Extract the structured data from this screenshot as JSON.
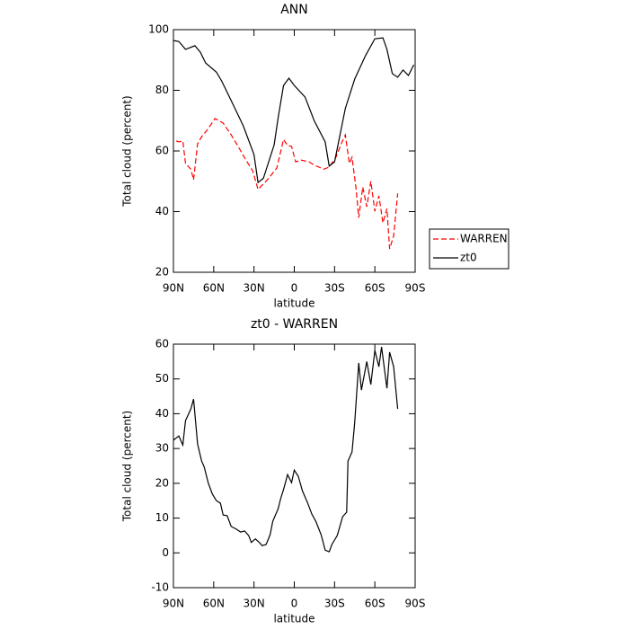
{
  "chart_data": [
    {
      "type": "line",
      "title": "ANN",
      "xlabel": "latitude",
      "ylabel": "Total cloud (percent)",
      "xlim": [
        90,
        -90
      ],
      "xticks": [
        {
          "value": 90,
          "label": "90N"
        },
        {
          "value": 60,
          "label": "60N"
        },
        {
          "value": 30,
          "label": "30N"
        },
        0,
        {
          "value": -30,
          "label": "30S"
        },
        {
          "value": -60,
          "label": "60S"
        },
        {
          "value": -90,
          "label": "90S"
        }
      ],
      "ylim": [
        20,
        100
      ],
      "yticks": [
        20,
        40,
        60,
        80,
        100
      ],
      "legend": "right",
      "series": [
        {
          "name": "WARREN",
          "color": "#ff0000",
          "style": "dashed",
          "x": [
            88,
            86,
            83,
            81,
            77,
            75,
            72,
            69,
            65,
            59,
            53,
            47,
            43,
            36,
            31,
            27,
            20,
            13,
            10,
            8,
            5,
            2,
            -1,
            -5,
            -11,
            -15,
            -22,
            -26,
            -31,
            -35,
            -38,
            -41,
            -43,
            -46,
            -48,
            -51,
            -54,
            -57,
            -60,
            -63,
            -66,
            -69,
            -71,
            -74,
            -77
          ],
          "values": [
            63.3,
            63,
            63.3,
            55.9,
            54,
            50.5,
            62.4,
            64.7,
            66.8,
            70.7,
            69.2,
            65.3,
            62.4,
            57,
            53.5,
            47.3,
            50.5,
            54.4,
            60,
            63.8,
            61.8,
            61.5,
            56.4,
            57,
            56.4,
            55.3,
            54,
            54.7,
            57.9,
            62.4,
            65.3,
            55.9,
            57.9,
            47.6,
            38,
            48.1,
            41.6,
            50,
            40.1,
            45.2,
            36.3,
            41,
            27.7,
            32,
            46
          ]
        },
        {
          "name": "zt0",
          "color": "#000000",
          "style": "solid",
          "x": [
            90,
            86,
            81,
            74,
            70,
            66,
            58,
            54,
            46,
            38,
            30,
            27,
            23,
            15,
            12,
            8,
            4,
            0,
            -8,
            -15,
            -23,
            -26,
            -30,
            -38,
            -45,
            -53,
            -60,
            -66,
            -69,
            -73,
            -77,
            -81,
            -85,
            -89
          ],
          "values": [
            96.4,
            96.1,
            93.5,
            94.7,
            92.6,
            89,
            86,
            83,
            75.7,
            68.3,
            58.8,
            49.6,
            51,
            62,
            71,
            81.6,
            84,
            81.6,
            77.8,
            69.8,
            63,
            55,
            56.4,
            74,
            83.7,
            91.4,
            97,
            97.3,
            93.5,
            85.5,
            84.3,
            86.7,
            84.9,
            88.4
          ]
        }
      ]
    },
    {
      "type": "line",
      "title": "zt0 - WARREN",
      "xlabel": "latitude",
      "ylabel": "Total cloud (percent)",
      "xlim": [
        90,
        -90
      ],
      "xticks": [
        {
          "value": 90,
          "label": "90N"
        },
        {
          "value": 60,
          "label": "60N"
        },
        {
          "value": 30,
          "label": "30N"
        },
        0,
        {
          "value": -30,
          "label": "30S"
        },
        {
          "value": -60,
          "label": "60S"
        },
        {
          "value": -90,
          "label": "90S"
        }
      ],
      "ylim": [
        -10,
        60
      ],
      "yticks": [
        -10,
        0,
        10,
        20,
        30,
        40,
        50,
        60
      ],
      "series": [
        {
          "color": "#000000",
          "style": "solid",
          "x": [
            90,
            86,
            83,
            81,
            77,
            75,
            72,
            69,
            67,
            64,
            61,
            58,
            55,
            53,
            50,
            47,
            43,
            40,
            37,
            34,
            32,
            29,
            26,
            24,
            21,
            18,
            16,
            12,
            10,
            8,
            5,
            2,
            0,
            -3,
            -6,
            -10,
            -13,
            -16,
            -20,
            -23,
            -26,
            -28,
            -32,
            -36,
            -39,
            -40,
            -43,
            -45,
            -48,
            -50,
            -54,
            -57,
            -60,
            -63,
            -65,
            -69,
            -71,
            -74,
            -77
          ],
          "values": [
            32.4,
            33.6,
            31,
            38,
            41.4,
            44.2,
            31.3,
            26.4,
            24.6,
            20,
            16.9,
            15,
            14.3,
            10.9,
            10.7,
            7.6,
            6.8,
            6,
            6.3,
            5,
            3,
            4,
            3,
            2.1,
            2.4,
            5.2,
            9.1,
            12.7,
            15.8,
            18.2,
            22.5,
            20.2,
            23.8,
            22,
            17.9,
            14.3,
            11.2,
            9.1,
            5.2,
            0.8,
            0.3,
            2.4,
            5,
            10.4,
            11.7,
            26.4,
            29,
            37.5,
            54.6,
            46.8,
            55,
            48.4,
            58.2,
            53.5,
            59.2,
            47.3,
            57.7,
            53.5,
            41.4
          ]
        }
      ]
    }
  ]
}
